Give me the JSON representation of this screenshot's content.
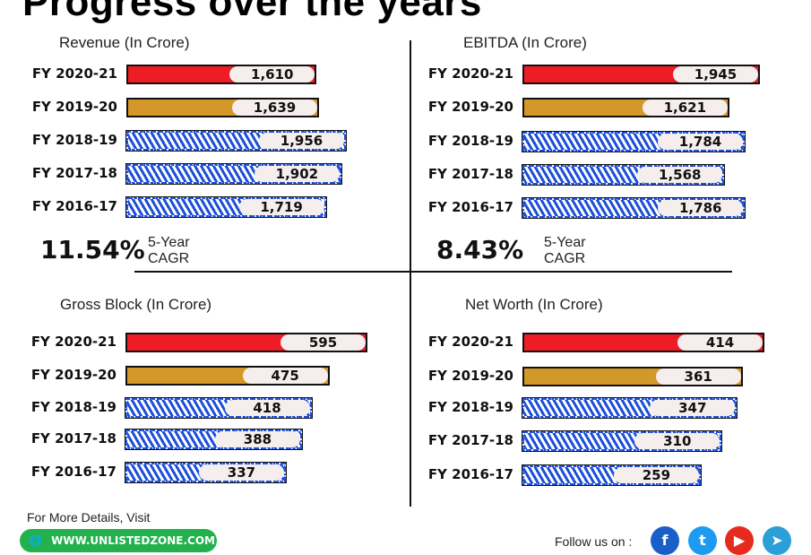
{
  "title": "Progress over the years",
  "panels": [
    {
      "title": "Revenue (In Crore)",
      "rows": [
        {
          "fy": "FY 2020-21",
          "value": "1,610",
          "v": 1610,
          "style": "red"
        },
        {
          "fy": "FY 2019-20",
          "value": "1,639",
          "v": 1639,
          "style": "gold"
        },
        {
          "fy": "FY 2018-19",
          "value": "1,956",
          "v": 1956,
          "style": "hatch"
        },
        {
          "fy": "FY 2017-18",
          "value": "1,902",
          "v": 1902,
          "style": "hatch"
        },
        {
          "fy": "FY 2016-17",
          "value": "1,719",
          "v": 1719,
          "style": "hatch"
        }
      ],
      "cagr": "11.54%",
      "cagr_label1": "5-Year",
      "cagr_label2": "CAGR"
    },
    {
      "title": "EBITDA (In Crore)",
      "rows": [
        {
          "fy": "FY 2020-21",
          "value": "1,945",
          "v": 1945,
          "style": "red"
        },
        {
          "fy": "FY 2019-20",
          "value": "1,621",
          "v": 1621,
          "style": "gold"
        },
        {
          "fy": "FY 2018-19",
          "value": "1,784",
          "v": 1784,
          "style": "hatch"
        },
        {
          "fy": "FY 2017-18",
          "value": "1,568",
          "v": 1568,
          "style": "hatch"
        },
        {
          "fy": "FY 2016-17",
          "value": "1,786",
          "v": 1786,
          "style": "hatch"
        }
      ],
      "cagr": "8.43%",
      "cagr_label1": "5-Year",
      "cagr_label2": "CAGR"
    },
    {
      "title": "Gross Block (In Crore)",
      "rows": [
        {
          "fy": "FY 2020-21",
          "value": "595",
          "v": 595,
          "style": "red"
        },
        {
          "fy": "FY 2019-20",
          "value": "475",
          "v": 475,
          "style": "gold"
        },
        {
          "fy": "FY 2018-19",
          "value": "418",
          "v": 418,
          "style": "hatch"
        },
        {
          "fy": "FY 2017-18",
          "value": "388",
          "v": 388,
          "style": "hatch"
        },
        {
          "fy": "FY 2016-17",
          "value": "337",
          "v": 337,
          "style": "hatch"
        }
      ]
    },
    {
      "title": "Net Worth (In Crore)",
      "rows": [
        {
          "fy": "FY 2020-21",
          "value": "414",
          "v": 414,
          "style": "red"
        },
        {
          "fy": "FY 2019-20",
          "value": "361",
          "v": 361,
          "style": "gold"
        },
        {
          "fy": "FY 2018-19",
          "value": "347",
          "v": 347,
          "style": "hatch"
        },
        {
          "fy": "FY 2017-18",
          "value": "310",
          "v": 310,
          "style": "hatch"
        },
        {
          "fy": "FY 2016-17",
          "value": "259",
          "v": 259,
          "style": "hatch"
        }
      ]
    }
  ],
  "colors": {
    "red": "#ee1c25",
    "gold": "#d4982a",
    "hatch": "#1d4fd8"
  },
  "footer": {
    "details": "For More Details, Visit",
    "website": "WWW.UNLISTEDZONE.COM",
    "follow": "Follow us on :",
    "social": [
      "facebook-icon",
      "twitter-icon",
      "youtube-icon",
      "telegram-icon"
    ]
  }
}
